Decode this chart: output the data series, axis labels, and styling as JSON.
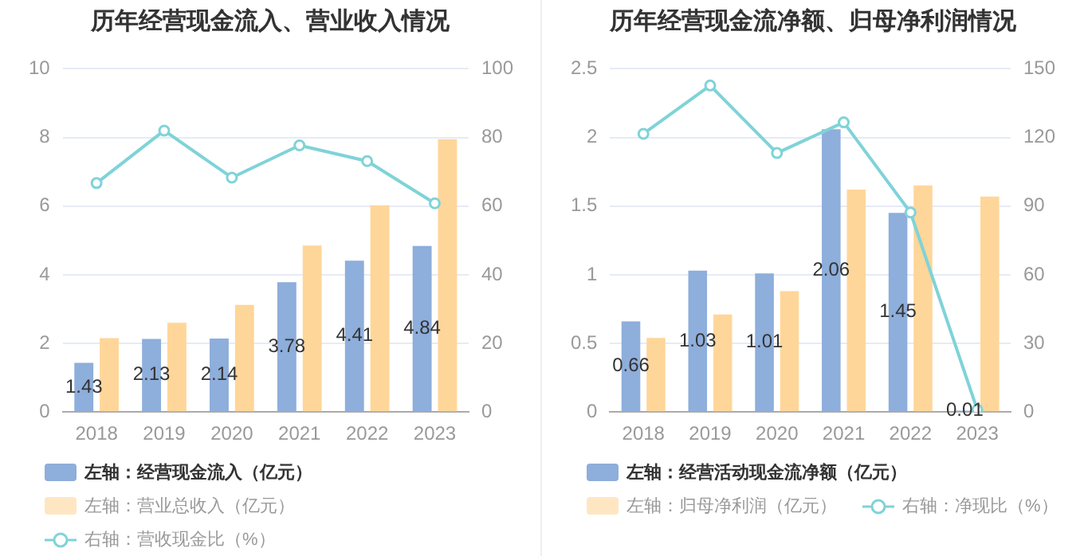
{
  "chart_data": [
    {
      "type": "bar",
      "title": "历年经营现金流入、营业收入情况",
      "categories": [
        "2018",
        "2019",
        "2020",
        "2021",
        "2022",
        "2023"
      ],
      "series": [
        {
          "name": "左轴：经营现金流入（亿元）",
          "color": "#8eaedb",
          "values": [
            1.43,
            2.13,
            2.14,
            3.78,
            4.41,
            4.84
          ],
          "value_labels": [
            "1.43",
            "2.13",
            "2.14",
            "3.78",
            "4.41",
            "4.84"
          ]
        },
        {
          "name": "左轴：营业总收入（亿元）",
          "color": "#ffd699",
          "values": [
            2.15,
            2.6,
            3.12,
            4.85,
            6.02,
            7.95
          ]
        },
        {
          "name": "右轴：营收现金比（%）",
          "type": "line",
          "axis": "y2",
          "marker": "circle",
          "color": "#7fd3d8",
          "values": [
            66.7,
            82.0,
            68.3,
            77.7,
            73.1,
            60.8
          ]
        }
      ],
      "ylim": [
        0,
        10
      ],
      "yticks": [
        0,
        2,
        4,
        6,
        8,
        10
      ],
      "y2lim": [
        0,
        100
      ],
      "y2ticks": [
        0,
        20,
        40,
        60,
        80,
        100
      ],
      "grid": "y",
      "legend": "bottom"
    },
    {
      "type": "bar",
      "title": "历年经营现金流净额、归母净利润情况",
      "categories": [
        "2018",
        "2019",
        "2020",
        "2021",
        "2022",
        "2023"
      ],
      "series": [
        {
          "name": "左轴：经营活动现金流净额（亿元）",
          "color": "#8eaedb",
          "values": [
            0.66,
            1.03,
            1.01,
            2.06,
            1.45,
            0.01
          ],
          "value_labels": [
            "0.66",
            "1.03",
            "1.01",
            "2.06",
            "1.45",
            "0.01"
          ]
        },
        {
          "name": "左轴：归母净利润（亿元）",
          "color": "#ffd699",
          "values": [
            0.54,
            0.71,
            0.88,
            1.62,
            1.65,
            1.57
          ]
        },
        {
          "name": "右轴：净现比（%）",
          "type": "line",
          "axis": "y2",
          "marker": "circle",
          "color": "#7fd3d8",
          "values": [
            121.6,
            142.7,
            113.2,
            126.6,
            87.2,
            1
          ]
        }
      ],
      "ylim": [
        0,
        2.5
      ],
      "yticks": [
        0,
        0.5,
        1,
        1.5,
        2,
        2.5
      ],
      "y2lim": [
        0,
        150
      ],
      "y2ticks": [
        0,
        30,
        60,
        90,
        120,
        150
      ],
      "grid": "y",
      "legend": "bottom"
    }
  ]
}
